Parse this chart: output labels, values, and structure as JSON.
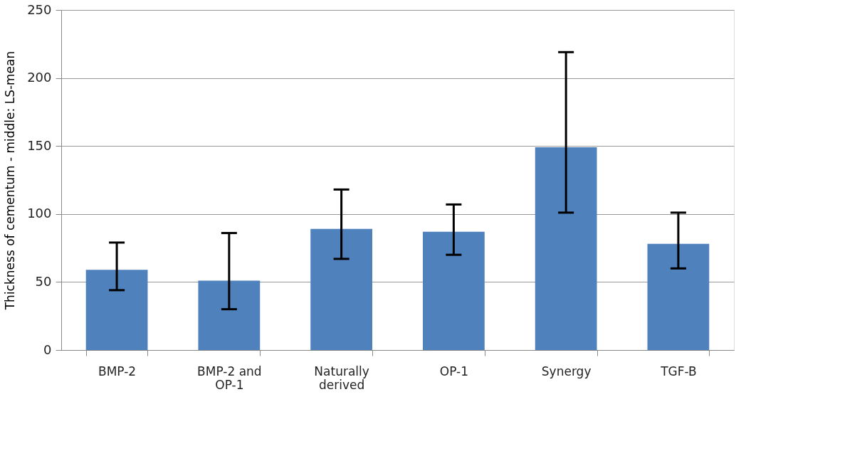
{
  "chart_data": {
    "type": "bar",
    "ylabel": "Thickness of cementum - middle:  LS-mean",
    "categories": [
      "BMP-2",
      "BMP-2 and OP-1",
      "Naturally derived",
      "OP-1",
      "Synergy",
      "TGF-B"
    ],
    "values": [
      59,
      51,
      89,
      87,
      149,
      78
    ],
    "errors": [
      [
        44,
        79
      ],
      [
        30,
        86
      ],
      [
        67,
        118
      ],
      [
        70,
        107
      ],
      [
        101,
        219
      ],
      [
        60,
        101
      ]
    ],
    "color": "#4f81bd",
    "ylim": [
      0,
      250
    ],
    "yticks": [
      0,
      50,
      100,
      150,
      200,
      250
    ],
    "grid": "y"
  }
}
